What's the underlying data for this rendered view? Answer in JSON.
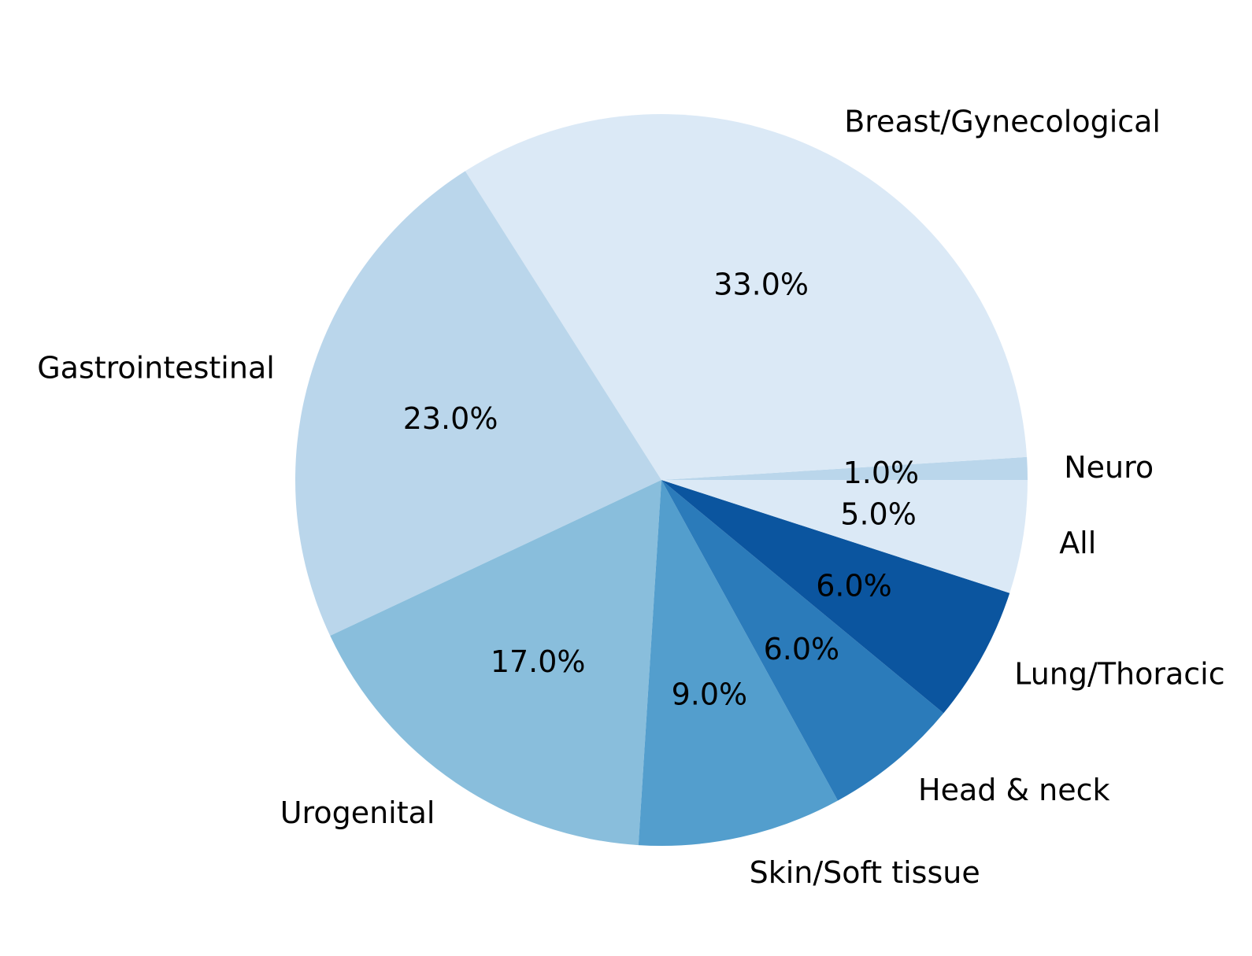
{
  "chart_data": {
    "type": "pie",
    "title": "",
    "start_angle_deg": 0,
    "direction": "counterclockwise",
    "slices": [
      {
        "label": "Neuro",
        "value": 1.0,
        "pct_label": "1.0%",
        "color": "#bad6eb"
      },
      {
        "label": "Breast/Gynecological",
        "value": 33.0,
        "pct_label": "33.0%",
        "color": "#dbe9f6"
      },
      {
        "label": "Gastrointestinal",
        "value": 23.0,
        "pct_label": "23.0%",
        "color": "#bad6eb"
      },
      {
        "label": "Urogenital",
        "value": 17.0,
        "pct_label": "17.0%",
        "color": "#89bedc"
      },
      {
        "label": "Skin/Soft tissue",
        "value": 9.0,
        "pct_label": "9.0%",
        "color": "#539ecd"
      },
      {
        "label": "Head & neck",
        "value": 6.0,
        "pct_label": "6.0%",
        "color": "#2b7bba"
      },
      {
        "label": "Lung/Thoracic",
        "value": 6.0,
        "pct_label": "6.0%",
        "color": "#0b559f"
      },
      {
        "label": "All",
        "value": 5.0,
        "pct_label": "5.0%",
        "color": "#dbe9f6"
      }
    ]
  }
}
